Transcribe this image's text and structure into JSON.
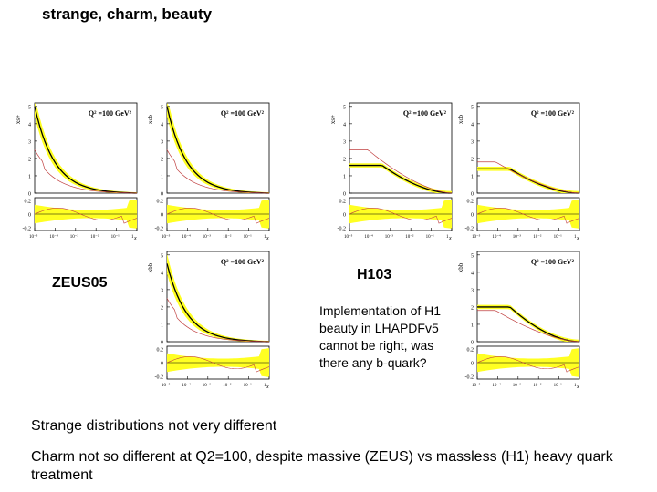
{
  "slide": {
    "title": "strange, charm, beauty",
    "label_left": "ZEUS05",
    "label_right": "H103",
    "note": "Implementation of H1 beauty in LHAPDFv5 cannot be right, was there any b-quark?",
    "text_line1": "Strange distributions not very different",
    "text_line2": "Charm not so different at Q2=100, despite massive (ZEUS) vs massless (H1) heavy quark treatment"
  },
  "colors": {
    "band": "#ffff22",
    "black_line": "#000000",
    "red_line": "#c04040"
  },
  "panels": [
    {
      "id": "s-zeus",
      "ylabel": "xs+",
      "q2": "Q² =100 GeV²",
      "kind": "strange",
      "yticks": [
        "5",
        "4",
        "3",
        "2",
        "1",
        "0"
      ],
      "rticks": [
        "0.2",
        "0",
        "-0.2"
      ],
      "xticks": [
        "10⁻⁵",
        "10⁻⁴",
        "10⁻³",
        "10⁻²",
        "10⁻¹",
        "1"
      ],
      "xlabel": "x"
    },
    {
      "id": "c-zeus",
      "ylabel": "xcb",
      "q2": "Q² =100 GeV²",
      "kind": "charm",
      "yticks": [
        "5",
        "4",
        "3",
        "2",
        "1",
        "0"
      ],
      "rticks": [
        "0.2",
        "0",
        "-0.2"
      ],
      "xticks": [
        "10⁻⁵",
        "10⁻⁴",
        "10⁻³",
        "10⁻²",
        "10⁻¹",
        "1"
      ],
      "xlabel": "x"
    },
    {
      "id": "b-zeus",
      "ylabel": "xbb",
      "q2": "Q² =100 GeV²",
      "kind": "beauty",
      "yticks": [
        "5",
        "4",
        "3",
        "2",
        "1",
        "0"
      ],
      "rticks": [
        "0.2",
        "0",
        "-0.2"
      ],
      "xticks": [
        "10⁻⁵",
        "10⁻⁴",
        "10⁻³",
        "10⁻²",
        "10⁻¹",
        "1"
      ],
      "xlabel": "x"
    },
    {
      "id": "s-h1",
      "ylabel": "xs+",
      "q2": "Q² =100 GeV²",
      "kind": "h1strange",
      "yticks": [
        "5",
        "4",
        "3",
        "2",
        "1",
        "0"
      ],
      "rticks": [
        "0.2",
        "0",
        "-0.2"
      ],
      "xticks": [
        "10⁻⁵",
        "10⁻⁴",
        "10⁻³",
        "10⁻²",
        "10⁻¹",
        "1"
      ],
      "xlabel": "x"
    },
    {
      "id": "c-h1",
      "ylabel": "xcb",
      "q2": "Q² =100 GeV²",
      "kind": "h1charm",
      "yticks": [
        "5",
        "4",
        "3",
        "2",
        "1",
        "0"
      ],
      "rticks": [
        "0.2",
        "0",
        "-0.2"
      ],
      "xticks": [
        "10⁻⁵",
        "10⁻⁴",
        "10⁻³",
        "10⁻²",
        "10⁻¹",
        "1"
      ],
      "xlabel": "x"
    },
    {
      "id": "b-h1",
      "ylabel": "xbb",
      "q2": "Q² =100 GeV²",
      "kind": "h1beauty",
      "yticks": [
        "5",
        "4",
        "3",
        "2",
        "1",
        "0"
      ],
      "rticks": [
        "0.2",
        "0",
        "-0.2"
      ],
      "xticks": [
        "10⁻⁵",
        "10⁻⁴",
        "10⁻³",
        "10⁻²",
        "10⁻¹",
        "1"
      ],
      "xlabel": "x"
    }
  ]
}
